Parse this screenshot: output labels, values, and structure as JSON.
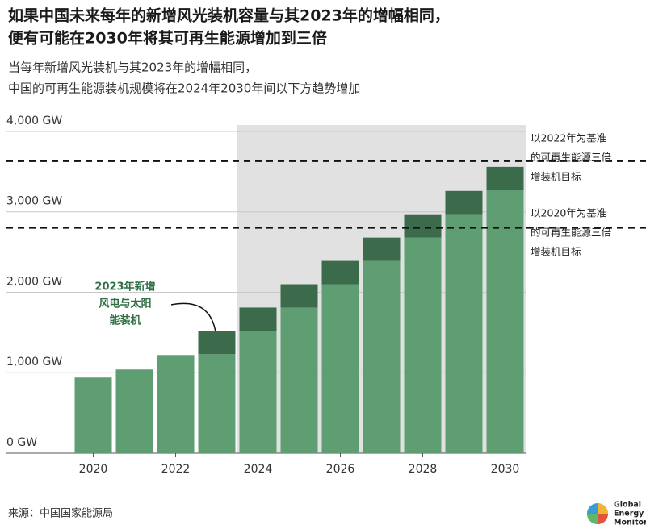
{
  "chart_data": {
    "type": "stacked_bar",
    "title": [
      "如果中国未来每年的新增风光装机容量与其2023年的增幅相同，",
      "便有可能在2030年将其可再生能源增加到三倍"
    ],
    "subtitle": [
      "当每年新增风光装机与其2023年的增幅相同，",
      "中国的可再生能源装机规模将在2024年2030年间以下方趋势增加"
    ],
    "x": [
      2020,
      2021,
      2022,
      2023,
      2024,
      2025,
      2026,
      2027,
      2028,
      2029,
      2030
    ],
    "series": [
      {
        "color": "#5f9e72",
        "values": [
          940,
          1040,
          1220,
          1230,
          1520,
          1810,
          2100,
          2390,
          2680,
          2970,
          3270
        ]
      },
      {
        "color": "#3b6b4b",
        "values": [
          null,
          null,
          null,
          290,
          290,
          290,
          290,
          290,
          290,
          290,
          290
        ]
      }
    ],
    "xlim": [
      2019.5,
      2030.5
    ],
    "xticks": [
      2020,
      2022,
      2024,
      2026,
      2028,
      2030
    ],
    "ylim": [
      0,
      4080
    ],
    "yticks": [
      {
        "value": 0,
        "label": "0 GW"
      },
      {
        "value": 1000,
        "label": "1,000 GW"
      },
      {
        "value": 2000,
        "label": "2,000 GW"
      },
      {
        "value": 3000,
        "label": "3,000 GW"
      },
      {
        "value": 4000,
        "label": "4,000 GW"
      }
    ],
    "grid": true,
    "shaded_from": 2023.5,
    "shade_color": "#e1e1e1",
    "reference_lines": [
      {
        "value": 3630,
        "label": [
          "以2022年为基准",
          "的可再生能源三倍",
          "增装机目标"
        ]
      },
      {
        "value": 2800,
        "label": [
          "以2020年为基准",
          "的可再生能源三倍",
          "增装机目标"
        ]
      }
    ],
    "annotation": [
      "2023年新增",
      "风电与太阳",
      "能装机"
    ]
  },
  "footer": {
    "source": "来源：中国国家能源局",
    "logo": [
      "Global",
      "Energy",
      "Monitor"
    ]
  }
}
